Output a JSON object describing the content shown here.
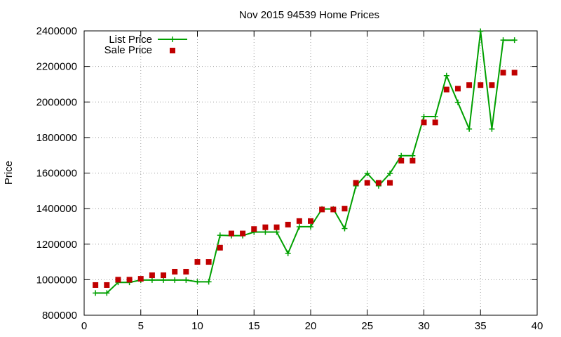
{
  "chart_data": {
    "type": "line",
    "title": "Nov 2015 94539 Home Prices",
    "xlabel": "",
    "ylabel": "Price",
    "xlim": [
      0,
      40
    ],
    "ylim": [
      800000,
      2400000
    ],
    "xticks": [
      0,
      5,
      10,
      15,
      20,
      25,
      30,
      35,
      40
    ],
    "yticks": [
      800000,
      1000000,
      1200000,
      1400000,
      1600000,
      1800000,
      2000000,
      2200000,
      2400000
    ],
    "grid": true,
    "legend_position": "top-left",
    "series": [
      {
        "name": "List Price",
        "style": "line-with-plus-markers",
        "color": "#00a000",
        "x": [
          1,
          2,
          3,
          4,
          5,
          6,
          7,
          8,
          9,
          10,
          11,
          12,
          13,
          14,
          15,
          16,
          17,
          18,
          19,
          20,
          21,
          22,
          23,
          24,
          25,
          26,
          27,
          28,
          29,
          30,
          31,
          32,
          33,
          34,
          35,
          36,
          37,
          38
        ],
        "y": [
          925000,
          925000,
          985000,
          985000,
          998000,
          998000,
          998000,
          998000,
          998000,
          988000,
          988000,
          1250000,
          1248000,
          1248000,
          1268000,
          1268000,
          1268000,
          1148000,
          1298000,
          1298000,
          1398000,
          1398000,
          1288000,
          1528000,
          1598000,
          1528000,
          1598000,
          1698000,
          1698000,
          1918000,
          1918000,
          2148000,
          1998000,
          1848000,
          2398000,
          1848000,
          2348000,
          2348000
        ]
      },
      {
        "name": "Sale Price",
        "style": "square-markers",
        "color": "#c00000",
        "x": [
          1,
          2,
          3,
          4,
          5,
          6,
          7,
          8,
          9,
          10,
          11,
          12,
          13,
          14,
          15,
          16,
          17,
          18,
          19,
          20,
          21,
          22,
          23,
          24,
          25,
          26,
          27,
          28,
          29,
          30,
          31,
          32,
          33,
          34,
          35,
          36,
          37,
          38
        ],
        "y": [
          970000,
          970000,
          1000000,
          1000000,
          1005000,
          1025000,
          1025000,
          1045000,
          1045000,
          1100000,
          1100000,
          1180000,
          1260000,
          1260000,
          1285000,
          1295000,
          1295000,
          1310000,
          1330000,
          1330000,
          1395000,
          1395000,
          1400000,
          1545000,
          1545000,
          1545000,
          1545000,
          1670000,
          1670000,
          1885000,
          1885000,
          2070000,
          2075000,
          2095000,
          2095000,
          2095000,
          2165000,
          2165000
        ]
      }
    ]
  }
}
